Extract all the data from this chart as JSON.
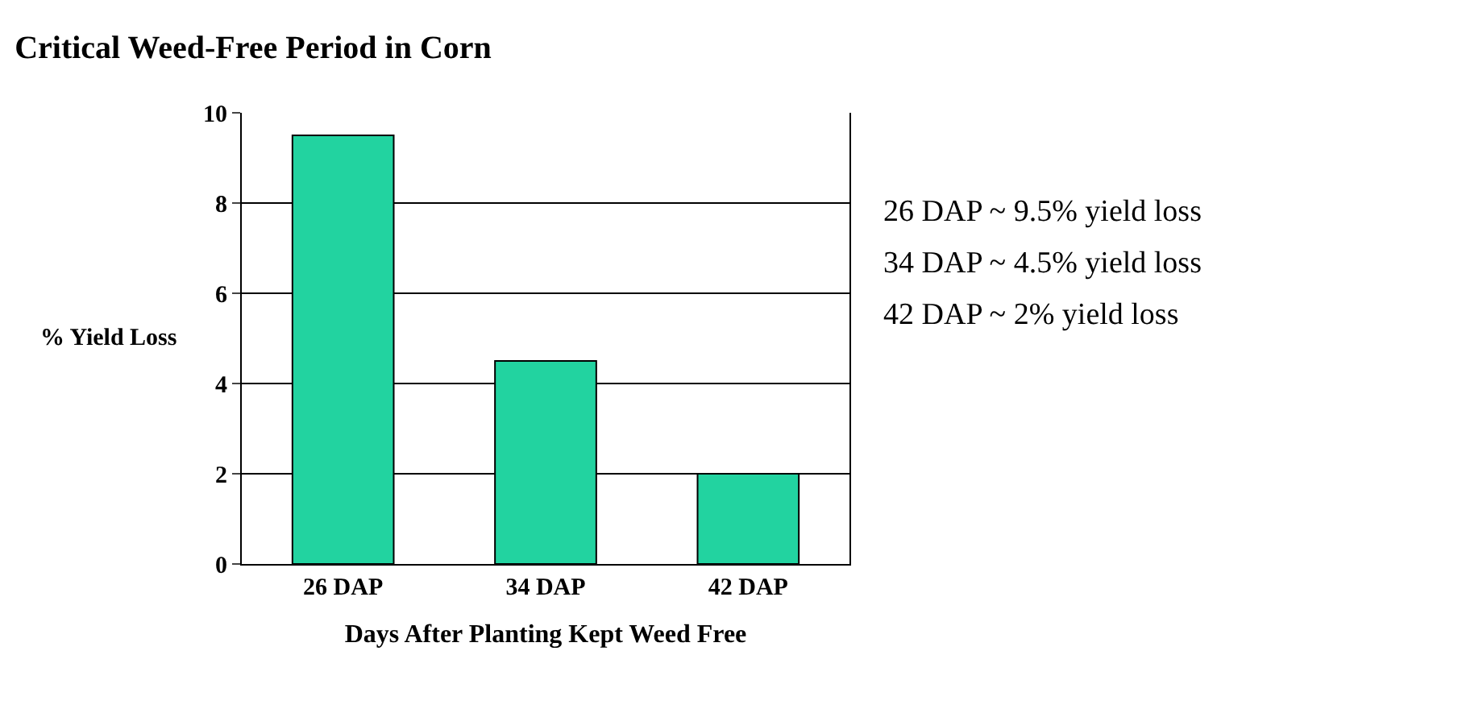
{
  "chart_data": {
    "type": "bar",
    "title": "Critical Weed-Free Period in Corn",
    "xlabel": "Days After Planting Kept Weed Free",
    "ylabel": "% Yield Loss",
    "categories": [
      "26 DAP",
      "34 DAP",
      "42 DAP"
    ],
    "values": [
      9.5,
      4.5,
      2
    ],
    "color": "#22d3a0",
    "ylim": [
      0,
      10
    ],
    "yticks": [
      0,
      2,
      4,
      6,
      8,
      10
    ],
    "grid": "y",
    "annotations": [
      "26 DAP ~ 9.5% yield loss",
      "34 DAP ~ 4.5% yield loss",
      "42 DAP ~ 2% yield loss"
    ]
  }
}
